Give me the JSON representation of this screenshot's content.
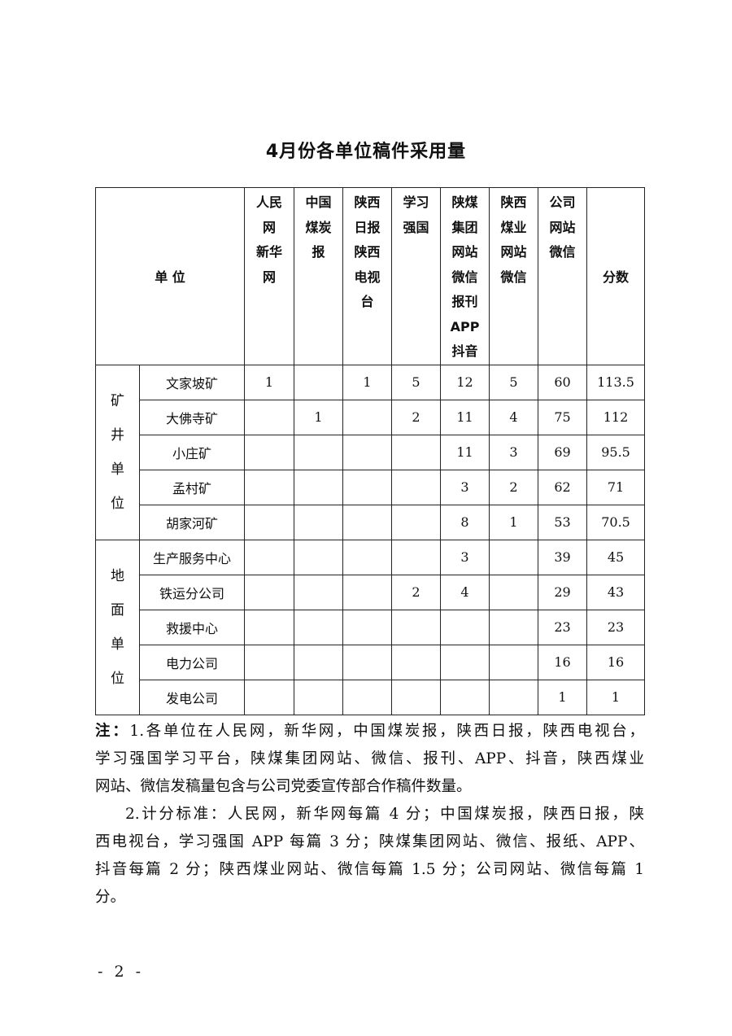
{
  "title": "4月份各单位稿件采用量",
  "table": {
    "unit_header": "单 位",
    "columns": [
      [
        "人民",
        "网",
        "新华",
        "网"
      ],
      [
        "中国",
        "煤炭",
        "报"
      ],
      [
        "陕西",
        "日报",
        "陕西",
        "电视",
        "台"
      ],
      [
        "学习",
        "强国"
      ],
      [
        "陕煤",
        "集团",
        "网站",
        "微信",
        "报刊",
        "APP",
        "抖音"
      ],
      [
        "陕西",
        "煤业",
        "网站",
        "微信"
      ],
      [
        "公司",
        "网站",
        "微信"
      ]
    ],
    "score_header": "分数",
    "groups": [
      {
        "label": [
          "矿",
          "井",
          "单",
          "位"
        ],
        "rows": [
          {
            "unit": "文家坡矿",
            "values": [
              "1",
              "",
              "1",
              "5",
              "12",
              "5",
              "60"
            ],
            "score": "113.5"
          },
          {
            "unit": "大佛寺矿",
            "values": [
              "",
              "1",
              "",
              "2",
              "11",
              "4",
              "75"
            ],
            "score": "112"
          },
          {
            "unit": "小庄矿",
            "values": [
              "",
              "",
              "",
              "",
              "11",
              "3",
              "69"
            ],
            "score": "95.5"
          },
          {
            "unit": "孟村矿",
            "values": [
              "",
              "",
              "",
              "",
              "3",
              "2",
              "62"
            ],
            "score": "71"
          },
          {
            "unit": "胡家河矿",
            "values": [
              "",
              "",
              "",
              "",
              "8",
              "1",
              "53"
            ],
            "score": "70.5"
          }
        ]
      },
      {
        "label": [
          "地",
          "面",
          "单",
          "位"
        ],
        "rows": [
          {
            "unit": "生产服务中心",
            "values": [
              "",
              "",
              "",
              "",
              "3",
              "",
              "39"
            ],
            "score": "45"
          },
          {
            "unit": "铁运分公司",
            "values": [
              "",
              "",
              "",
              "2",
              "4",
              "",
              "29"
            ],
            "score": "43"
          },
          {
            "unit": "救援中心",
            "values": [
              "",
              "",
              "",
              "",
              "",
              "",
              "23"
            ],
            "score": "23"
          },
          {
            "unit": "电力公司",
            "values": [
              "",
              "",
              "",
              "",
              "",
              "",
              "16"
            ],
            "score": "16"
          },
          {
            "unit": "发电公司",
            "values": [
              "",
              "",
              "",
              "",
              "",
              "",
              "1"
            ],
            "score": "1"
          }
        ]
      }
    ]
  },
  "notes": {
    "label": "注：",
    "lines": [
      "1.各单位在人民网，新华网，中国煤炭报，陕西日报，陕西电视台，",
      "学习强国学习平台，陕煤集团网站、微信、报刊、APP、抖音，陕西煤业",
      "网站、微信发稿量包含与公司党委宣传部合作稿件数量。",
      "2.计分标准：人民网，新华网每篇 4 分；中国煤炭报，陕西日报，陕",
      "西电视台，学习强国 APP 每篇 3 分；陕煤集团网站、微信、报纸、APP、",
      "抖音每篇 2 分；陕西煤业网站、微信每篇 1.5 分；公司网站、微信每篇 1",
      "分。"
    ]
  },
  "page_number": "- 2 -"
}
